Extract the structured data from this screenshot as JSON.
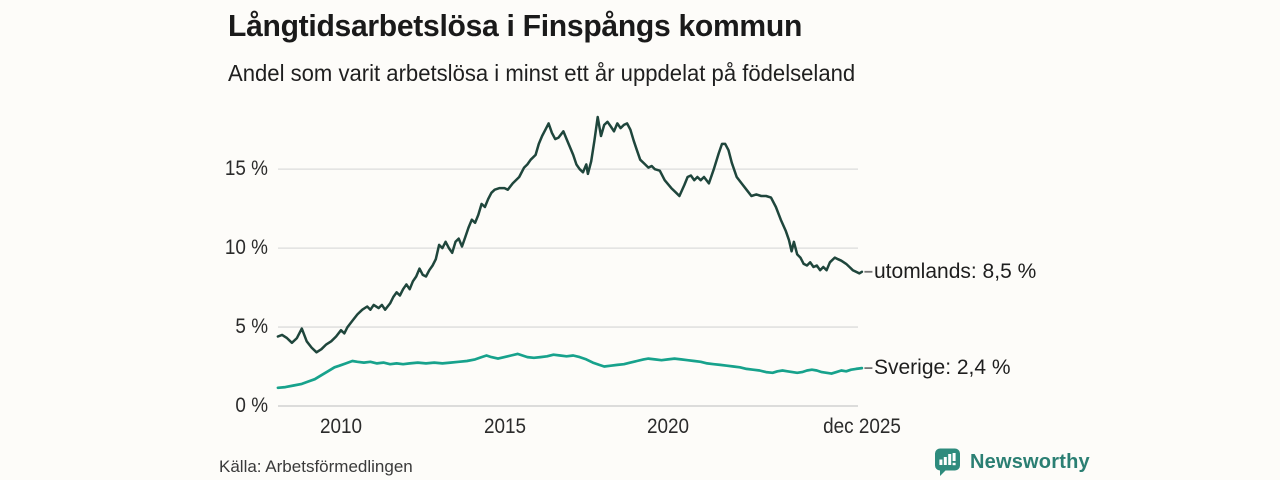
{
  "header": {
    "title": "Långtidsarbetslösa i Finspångs kommun",
    "subtitle": "Andel som varit arbetslösa i minst ett år uppdelat på födelseland"
  },
  "footer": {
    "source": "Källa: Arbetsförmedlingen",
    "brand": "Newsworthy",
    "brand_color": "#2b7f73",
    "logo_icon": "bar-chart-speech-bubble"
  },
  "colors": {
    "background": "#fdfcf9",
    "gridline": "#dcdcdc",
    "baseline": "#c9c9c9",
    "tick_connector": "#777777",
    "text": "#1e1e1e"
  },
  "chart_data": {
    "type": "line",
    "title": "Långtidsarbetslösa i Finspångs kommun",
    "subtitle": "Andel som varit arbetslösa i minst ett år uppdelat på födelseland",
    "unit": "%",
    "grid": "horizontal",
    "legend_position": "end-of-line-labels",
    "x_range": [
      2008.07,
      2025.93
    ],
    "ylim": [
      0,
      18.5
    ],
    "yticks": [
      {
        "value": 0,
        "label": "0 %"
      },
      {
        "value": 5,
        "label": "5 %"
      },
      {
        "value": 10,
        "label": "10 %"
      },
      {
        "value": 15,
        "label": "15 %"
      }
    ],
    "xticks": [
      {
        "x": 2010,
        "label": "2010"
      },
      {
        "x": 2015,
        "label": "2015"
      },
      {
        "x": 2020,
        "label": "2020"
      },
      {
        "x": 2025.93,
        "label": "dec 2025"
      }
    ],
    "series": [
      {
        "name": "utomlands",
        "end_label": "utomlands: 8,5 %",
        "current_value": "8,5 %",
        "color": "#1f463c",
        "stroke_width": 2.5,
        "points": [
          [
            2008.07,
            4.4
          ],
          [
            2008.2,
            4.5
          ],
          [
            2008.35,
            4.3
          ],
          [
            2008.5,
            4.0
          ],
          [
            2008.65,
            4.3
          ],
          [
            2008.8,
            4.9
          ],
          [
            2008.95,
            4.1
          ],
          [
            2009.1,
            3.7
          ],
          [
            2009.25,
            3.4
          ],
          [
            2009.4,
            3.6
          ],
          [
            2009.55,
            3.9
          ],
          [
            2009.7,
            4.1
          ],
          [
            2009.85,
            4.4
          ],
          [
            2010.0,
            4.8
          ],
          [
            2010.1,
            4.6
          ],
          [
            2010.2,
            5.0
          ],
          [
            2010.35,
            5.4
          ],
          [
            2010.5,
            5.8
          ],
          [
            2010.65,
            6.1
          ],
          [
            2010.8,
            6.3
          ],
          [
            2010.9,
            6.1
          ],
          [
            2011.0,
            6.4
          ],
          [
            2011.15,
            6.2
          ],
          [
            2011.25,
            6.4
          ],
          [
            2011.35,
            6.1
          ],
          [
            2011.5,
            6.5
          ],
          [
            2011.6,
            6.9
          ],
          [
            2011.7,
            7.2
          ],
          [
            2011.8,
            7.0
          ],
          [
            2011.9,
            7.4
          ],
          [
            2012.0,
            7.7
          ],
          [
            2012.1,
            7.4
          ],
          [
            2012.2,
            7.9
          ],
          [
            2012.3,
            8.2
          ],
          [
            2012.4,
            8.7
          ],
          [
            2012.5,
            8.3
          ],
          [
            2012.6,
            8.2
          ],
          [
            2012.7,
            8.6
          ],
          [
            2012.8,
            8.9
          ],
          [
            2012.9,
            9.3
          ],
          [
            2013.0,
            10.2
          ],
          [
            2013.1,
            10.0
          ],
          [
            2013.2,
            10.4
          ],
          [
            2013.3,
            10.0
          ],
          [
            2013.4,
            9.7
          ],
          [
            2013.5,
            10.4
          ],
          [
            2013.6,
            10.6
          ],
          [
            2013.7,
            10.1
          ],
          [
            2013.8,
            10.7
          ],
          [
            2013.9,
            11.3
          ],
          [
            2014.0,
            11.8
          ],
          [
            2014.1,
            11.6
          ],
          [
            2014.2,
            12.1
          ],
          [
            2014.3,
            12.8
          ],
          [
            2014.4,
            12.6
          ],
          [
            2014.5,
            13.1
          ],
          [
            2014.6,
            13.5
          ],
          [
            2014.7,
            13.7
          ],
          [
            2014.85,
            13.8
          ],
          [
            2015.0,
            13.8
          ],
          [
            2015.1,
            13.7
          ],
          [
            2015.25,
            14.1
          ],
          [
            2015.45,
            14.5
          ],
          [
            2015.6,
            15.1
          ],
          [
            2015.7,
            15.3
          ],
          [
            2015.8,
            15.6
          ],
          [
            2015.95,
            15.9
          ],
          [
            2016.05,
            16.6
          ],
          [
            2016.15,
            17.1
          ],
          [
            2016.25,
            17.5
          ],
          [
            2016.35,
            17.9
          ],
          [
            2016.45,
            17.3
          ],
          [
            2016.55,
            16.9
          ],
          [
            2016.65,
            17.0
          ],
          [
            2016.8,
            17.4
          ],
          [
            2016.9,
            16.9
          ],
          [
            2017.0,
            16.4
          ],
          [
            2017.1,
            15.9
          ],
          [
            2017.2,
            15.3
          ],
          [
            2017.3,
            15.0
          ],
          [
            2017.4,
            14.8
          ],
          [
            2017.5,
            15.3
          ],
          [
            2017.55,
            14.7
          ],
          [
            2017.65,
            15.5
          ],
          [
            2017.75,
            16.8
          ],
          [
            2017.85,
            18.3
          ],
          [
            2017.95,
            17.1
          ],
          [
            2018.05,
            17.8
          ],
          [
            2018.15,
            18.0
          ],
          [
            2018.25,
            17.7
          ],
          [
            2018.35,
            17.4
          ],
          [
            2018.45,
            17.9
          ],
          [
            2018.55,
            17.6
          ],
          [
            2018.65,
            17.8
          ],
          [
            2018.75,
            17.9
          ],
          [
            2018.85,
            17.5
          ],
          [
            2018.95,
            16.8
          ],
          [
            2019.05,
            16.2
          ],
          [
            2019.15,
            15.6
          ],
          [
            2019.3,
            15.3
          ],
          [
            2019.4,
            15.1
          ],
          [
            2019.5,
            15.2
          ],
          [
            2019.6,
            15.0
          ],
          [
            2019.75,
            14.9
          ],
          [
            2019.9,
            14.3
          ],
          [
            2020.1,
            13.8
          ],
          [
            2020.25,
            13.5
          ],
          [
            2020.35,
            13.3
          ],
          [
            2020.5,
            14.0
          ],
          [
            2020.6,
            14.5
          ],
          [
            2020.7,
            14.6
          ],
          [
            2020.8,
            14.3
          ],
          [
            2020.9,
            14.5
          ],
          [
            2021.0,
            14.3
          ],
          [
            2021.1,
            14.5
          ],
          [
            2021.25,
            14.1
          ],
          [
            2021.4,
            15.0
          ],
          [
            2021.55,
            16.0
          ],
          [
            2021.65,
            16.6
          ],
          [
            2021.75,
            16.6
          ],
          [
            2021.85,
            16.2
          ],
          [
            2021.95,
            15.4
          ],
          [
            2022.1,
            14.5
          ],
          [
            2022.25,
            14.1
          ],
          [
            2022.4,
            13.7
          ],
          [
            2022.55,
            13.3
          ],
          [
            2022.7,
            13.4
          ],
          [
            2022.85,
            13.3
          ],
          [
            2023.0,
            13.3
          ],
          [
            2023.15,
            13.2
          ],
          [
            2023.3,
            12.6
          ],
          [
            2023.45,
            11.8
          ],
          [
            2023.6,
            11.1
          ],
          [
            2023.7,
            10.5
          ],
          [
            2023.78,
            9.8
          ],
          [
            2023.85,
            10.4
          ],
          [
            2023.95,
            9.6
          ],
          [
            2024.05,
            9.4
          ],
          [
            2024.15,
            9.0
          ],
          [
            2024.25,
            8.9
          ],
          [
            2024.35,
            9.1
          ],
          [
            2024.45,
            8.8
          ],
          [
            2024.55,
            8.9
          ],
          [
            2024.65,
            8.6
          ],
          [
            2024.75,
            8.8
          ],
          [
            2024.85,
            8.6
          ],
          [
            2024.95,
            9.1
          ],
          [
            2025.1,
            9.4
          ],
          [
            2025.2,
            9.3
          ],
          [
            2025.3,
            9.2
          ],
          [
            2025.45,
            9.0
          ],
          [
            2025.55,
            8.8
          ],
          [
            2025.65,
            8.6
          ],
          [
            2025.75,
            8.5
          ],
          [
            2025.85,
            8.4
          ],
          [
            2025.93,
            8.5
          ]
        ]
      },
      {
        "name": "Sverige",
        "end_label": "Sverige: 2,4 %",
        "current_value": "2,4 %",
        "color": "#17a28c",
        "stroke_width": 2.7,
        "points": [
          [
            2008.07,
            1.15
          ],
          [
            2008.3,
            1.2
          ],
          [
            2008.55,
            1.3
          ],
          [
            2008.8,
            1.4
          ],
          [
            2009.0,
            1.55
          ],
          [
            2009.2,
            1.7
          ],
          [
            2009.4,
            1.95
          ],
          [
            2009.6,
            2.2
          ],
          [
            2009.8,
            2.45
          ],
          [
            2009.95,
            2.55
          ],
          [
            2010.15,
            2.7
          ],
          [
            2010.35,
            2.85
          ],
          [
            2010.5,
            2.8
          ],
          [
            2010.7,
            2.75
          ],
          [
            2010.9,
            2.8
          ],
          [
            2011.1,
            2.7
          ],
          [
            2011.3,
            2.75
          ],
          [
            2011.5,
            2.65
          ],
          [
            2011.7,
            2.7
          ],
          [
            2011.9,
            2.65
          ],
          [
            2012.1,
            2.7
          ],
          [
            2012.35,
            2.75
          ],
          [
            2012.6,
            2.7
          ],
          [
            2012.85,
            2.75
          ],
          [
            2013.1,
            2.7
          ],
          [
            2013.35,
            2.75
          ],
          [
            2013.6,
            2.8
          ],
          [
            2013.85,
            2.85
          ],
          [
            2014.1,
            2.95
          ],
          [
            2014.3,
            3.1
          ],
          [
            2014.45,
            3.2
          ],
          [
            2014.6,
            3.1
          ],
          [
            2014.8,
            3.0
          ],
          [
            2015.0,
            3.1
          ],
          [
            2015.2,
            3.2
          ],
          [
            2015.4,
            3.3
          ],
          [
            2015.55,
            3.2
          ],
          [
            2015.7,
            3.1
          ],
          [
            2015.9,
            3.05
          ],
          [
            2016.1,
            3.1
          ],
          [
            2016.3,
            3.15
          ],
          [
            2016.5,
            3.25
          ],
          [
            2016.7,
            3.2
          ],
          [
            2016.9,
            3.15
          ],
          [
            2017.1,
            3.2
          ],
          [
            2017.3,
            3.1
          ],
          [
            2017.5,
            2.95
          ],
          [
            2017.7,
            2.75
          ],
          [
            2017.9,
            2.6
          ],
          [
            2018.05,
            2.5
          ],
          [
            2018.25,
            2.55
          ],
          [
            2018.45,
            2.6
          ],
          [
            2018.65,
            2.65
          ],
          [
            2018.85,
            2.75
          ],
          [
            2019.05,
            2.85
          ],
          [
            2019.25,
            2.95
          ],
          [
            2019.4,
            3.0
          ],
          [
            2019.6,
            2.95
          ],
          [
            2019.8,
            2.9
          ],
          [
            2020.0,
            2.95
          ],
          [
            2020.2,
            3.0
          ],
          [
            2020.4,
            2.95
          ],
          [
            2020.6,
            2.9
          ],
          [
            2020.8,
            2.85
          ],
          [
            2021.0,
            2.8
          ],
          [
            2021.2,
            2.7
          ],
          [
            2021.4,
            2.65
          ],
          [
            2021.6,
            2.6
          ],
          [
            2021.8,
            2.55
          ],
          [
            2022.0,
            2.5
          ],
          [
            2022.2,
            2.45
          ],
          [
            2022.4,
            2.35
          ],
          [
            2022.6,
            2.3
          ],
          [
            2022.8,
            2.25
          ],
          [
            2023.0,
            2.15
          ],
          [
            2023.2,
            2.1
          ],
          [
            2023.35,
            2.2
          ],
          [
            2023.5,
            2.25
          ],
          [
            2023.65,
            2.2
          ],
          [
            2023.8,
            2.15
          ],
          [
            2023.95,
            2.1
          ],
          [
            2024.1,
            2.15
          ],
          [
            2024.25,
            2.25
          ],
          [
            2024.4,
            2.3
          ],
          [
            2024.55,
            2.25
          ],
          [
            2024.7,
            2.15
          ],
          [
            2024.85,
            2.1
          ],
          [
            2025.0,
            2.05
          ],
          [
            2025.15,
            2.15
          ],
          [
            2025.3,
            2.25
          ],
          [
            2025.45,
            2.2
          ],
          [
            2025.6,
            2.3
          ],
          [
            2025.75,
            2.35
          ],
          [
            2025.93,
            2.4
          ]
        ]
      }
    ]
  }
}
